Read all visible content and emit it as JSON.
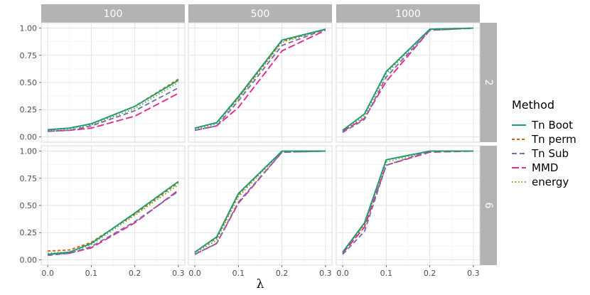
{
  "chart_data": {
    "type": "line",
    "xlabel": "λ",
    "ylabel": "",
    "x": [
      0.0,
      0.05,
      0.1,
      0.2,
      0.3
    ],
    "xticks": [
      "0.0",
      "0.1",
      "0.2",
      "0.3"
    ],
    "xtick_values": [
      0.0,
      0.1,
      0.2,
      0.3
    ],
    "yticks": [
      "0.00",
      "0.25",
      "0.50",
      "0.75",
      "1.00"
    ],
    "ytick_values": [
      0.0,
      0.25,
      0.5,
      0.75,
      1.0
    ],
    "xlim": [
      0.0,
      0.3
    ],
    "ylim": [
      0.0,
      1.0
    ],
    "grid": true,
    "legend_placement": "right",
    "legend_title": "Method",
    "columns": [
      "100",
      "500",
      "1000"
    ],
    "rows": [
      "2",
      "6"
    ],
    "series_styles": [
      {
        "name": "Tn Boot",
        "color": "#1b9e77",
        "dash": ""
      },
      {
        "name": "Tn perm",
        "color": "#d95f02",
        "dash": "4,3"
      },
      {
        "name": "Tn Sub",
        "color": "#7570b3",
        "dash": "7,4"
      },
      {
        "name": "MMD",
        "color": "#e7298a",
        "dash": "10,4"
      },
      {
        "name": "energy",
        "color": "#66a61e",
        "dash": "1.5,3"
      }
    ],
    "panels": [
      {
        "row": "2",
        "col": "100",
        "series": [
          {
            "name": "Tn Boot",
            "values": [
              0.065,
              0.08,
              0.12,
              0.28,
              0.52
            ]
          },
          {
            "name": "Tn perm",
            "values": [
              0.065,
              0.08,
              0.12,
              0.28,
              0.53
            ]
          },
          {
            "name": "Tn Sub",
            "values": [
              0.05,
              0.06,
              0.1,
              0.24,
              0.45
            ]
          },
          {
            "name": "MMD",
            "values": [
              0.05,
              0.06,
              0.08,
              0.19,
              0.4
            ]
          },
          {
            "name": "energy",
            "values": [
              0.06,
              0.075,
              0.11,
              0.26,
              0.5
            ]
          }
        ]
      },
      {
        "row": "2",
        "col": "500",
        "series": [
          {
            "name": "Tn Boot",
            "values": [
              0.08,
              0.13,
              0.37,
              0.89,
              0.99
            ]
          },
          {
            "name": "Tn perm",
            "values": [
              0.08,
              0.13,
              0.36,
              0.88,
              0.99
            ]
          },
          {
            "name": "Tn Sub",
            "values": [
              0.06,
              0.1,
              0.33,
              0.84,
              0.99
            ]
          },
          {
            "name": "MMD",
            "values": [
              0.06,
              0.1,
              0.27,
              0.79,
              0.98
            ]
          },
          {
            "name": "energy",
            "values": [
              0.07,
              0.12,
              0.35,
              0.87,
              0.99
            ]
          }
        ]
      },
      {
        "row": "2",
        "col": "1000",
        "series": [
          {
            "name": "Tn Boot",
            "values": [
              0.06,
              0.21,
              0.6,
              0.99,
              1.0
            ]
          },
          {
            "name": "Tn perm",
            "values": [
              0.06,
              0.21,
              0.6,
              0.99,
              1.0
            ]
          },
          {
            "name": "Tn Sub",
            "values": [
              0.04,
              0.16,
              0.55,
              0.98,
              1.0
            ]
          },
          {
            "name": "MMD",
            "values": [
              0.05,
              0.17,
              0.51,
              0.98,
              1.0
            ]
          },
          {
            "name": "energy",
            "values": [
              0.05,
              0.19,
              0.58,
              0.99,
              1.0
            ]
          }
        ]
      },
      {
        "row": "6",
        "col": "100",
        "series": [
          {
            "name": "Tn Boot",
            "values": [
              0.05,
              0.07,
              0.15,
              0.43,
              0.72
            ]
          },
          {
            "name": "Tn perm",
            "values": [
              0.08,
              0.09,
              0.16,
              0.42,
              0.71
            ]
          },
          {
            "name": "Tn Sub",
            "values": [
              0.04,
              0.06,
              0.12,
              0.35,
              0.63
            ]
          },
          {
            "name": "MMD",
            "values": [
              0.05,
              0.06,
              0.11,
              0.34,
              0.64
            ]
          },
          {
            "name": "energy",
            "values": [
              0.06,
              0.07,
              0.14,
              0.41,
              0.69
            ]
          }
        ]
      },
      {
        "row": "6",
        "col": "500",
        "series": [
          {
            "name": "Tn Boot",
            "values": [
              0.07,
              0.21,
              0.61,
              1.0,
              1.0
            ]
          },
          {
            "name": "Tn perm",
            "values": [
              0.07,
              0.2,
              0.6,
              1.0,
              1.0
            ]
          },
          {
            "name": "Tn Sub",
            "values": [
              0.05,
              0.15,
              0.53,
              0.99,
              1.0
            ]
          },
          {
            "name": "MMD",
            "values": [
              0.05,
              0.15,
              0.52,
              0.99,
              1.0
            ]
          },
          {
            "name": "energy",
            "values": [
              0.06,
              0.18,
              0.58,
              1.0,
              1.0
            ]
          }
        ]
      },
      {
        "row": "6",
        "col": "1000",
        "series": [
          {
            "name": "Tn Boot",
            "values": [
              0.07,
              0.34,
              0.92,
              1.0,
              1.0
            ]
          },
          {
            "name": "Tn perm",
            "values": [
              0.07,
              0.33,
              0.92,
              1.0,
              1.0
            ]
          },
          {
            "name": "Tn Sub",
            "values": [
              0.05,
              0.26,
              0.87,
              1.0,
              1.0
            ]
          },
          {
            "name": "MMD",
            "values": [
              0.06,
              0.3,
              0.87,
              0.99,
              1.0
            ]
          },
          {
            "name": "energy",
            "values": [
              0.06,
              0.32,
              0.9,
              1.0,
              1.0
            ]
          }
        ]
      }
    ]
  }
}
